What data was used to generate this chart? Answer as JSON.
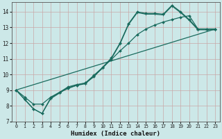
{
  "xlabel": "Humidex (Indice chaleur)",
  "bg_color": "#cce8e8",
  "line_color": "#1a6b5e",
  "grid_color": "#c8a8a8",
  "xlim": [
    -0.5,
    23.5
  ],
  "ylim": [
    7,
    14.6
  ],
  "xticks": [
    0,
    1,
    2,
    3,
    4,
    5,
    6,
    7,
    8,
    9,
    10,
    11,
    12,
    13,
    14,
    15,
    16,
    17,
    18,
    19,
    20,
    21,
    22,
    23
  ],
  "yticks": [
    7,
    8,
    9,
    10,
    11,
    12,
    13,
    14
  ],
  "line1_x": [
    0,
    1,
    2,
    3,
    4,
    5,
    6,
    7,
    8,
    9,
    10,
    11,
    12,
    13,
    14,
    15,
    16,
    17,
    18,
    19,
    20,
    21,
    22,
    23
  ],
  "line1_y": [
    9.0,
    8.4,
    7.8,
    7.5,
    8.5,
    8.85,
    9.2,
    9.35,
    9.45,
    9.95,
    10.45,
    11.05,
    12.0,
    13.25,
    14.0,
    13.9,
    13.9,
    13.85,
    14.42,
    14.0,
    13.5,
    12.9,
    12.9,
    12.9
  ],
  "line2_x": [
    0,
    1,
    2,
    3,
    4,
    5,
    6,
    7,
    8,
    9,
    10,
    11,
    12,
    13,
    14,
    15,
    16,
    17,
    18,
    19,
    20,
    21,
    22,
    23
  ],
  "line2_y": [
    9.0,
    8.4,
    7.8,
    7.5,
    8.45,
    8.8,
    9.15,
    9.3,
    9.4,
    9.9,
    10.4,
    11.0,
    11.95,
    13.2,
    13.95,
    13.85,
    13.85,
    13.8,
    14.37,
    13.95,
    13.45,
    12.85,
    12.85,
    12.85
  ],
  "line3_x": [
    0,
    1,
    2,
    3,
    4,
    5,
    6,
    7,
    8,
    9,
    10,
    11,
    12,
    13,
    14,
    15,
    16,
    17,
    18,
    19,
    20,
    21,
    22,
    23
  ],
  "line3_y": [
    9.0,
    8.55,
    8.1,
    8.1,
    8.55,
    8.85,
    9.1,
    9.3,
    9.45,
    9.85,
    10.45,
    10.95,
    11.5,
    12.0,
    12.55,
    12.9,
    13.15,
    13.35,
    13.5,
    13.65,
    13.75,
    12.9,
    12.9,
    12.9
  ],
  "line4_x": [
    0,
    23
  ],
  "line4_y": [
    9.0,
    12.9
  ],
  "markersize": 2.0,
  "linewidth": 0.9
}
